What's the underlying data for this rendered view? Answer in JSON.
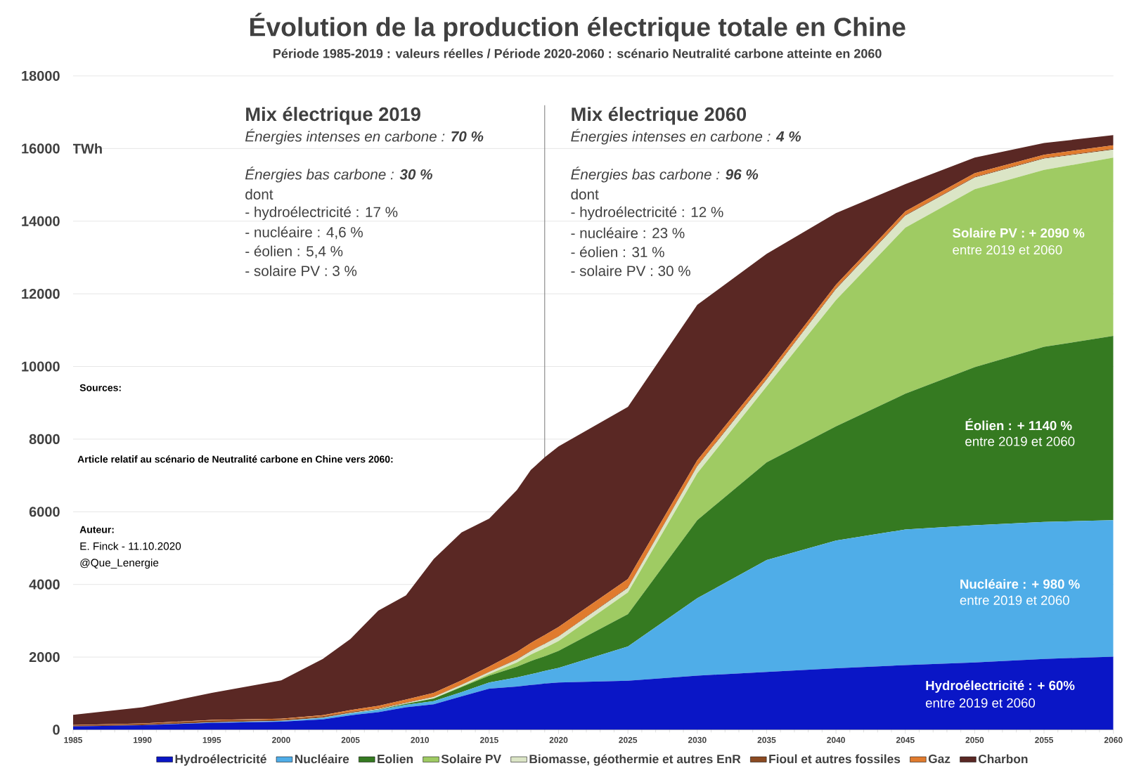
{
  "chart_data": {
    "type": "area",
    "stacked": true,
    "title": "Évolution de la production électrique totale en Chine",
    "subtitle": "Période 1985-2019 : valeurs réelles / Période 2020-2060 : scénario Neutralité carbone atteinte en 2060",
    "ylabel": "TWh",
    "x": [
      1985,
      1990,
      1995,
      2000,
      2003,
      2005,
      2007,
      2009,
      2011,
      2013,
      2015,
      2017,
      2018,
      2019,
      2020,
      2025,
      2030,
      2035,
      2040,
      2045,
      2050,
      2055,
      2060
    ],
    "series": [
      {
        "name": "Hydroélectricité",
        "color": "#0a16c6",
        "values": [
          90,
          125,
          190,
          222,
          284,
          397,
          485,
          616,
          698,
          920,
          1130,
          1190,
          1230,
          1270,
          1300,
          1350,
          1490,
          1590,
          1690,
          1780,
          1850,
          1950,
          2010
        ]
      },
      {
        "name": "Nucléaire",
        "color": "#4fade8",
        "values": [
          0,
          0,
          13,
          17,
          43,
          53,
          62,
          70,
          87,
          112,
          171,
          248,
          295,
          348,
          400,
          940,
          2130,
          3080,
          3520,
          3730,
          3780,
          3770,
          3760
        ]
      },
      {
        "name": "Eolien",
        "color": "#357a21",
        "values": [
          0,
          0,
          0,
          0,
          0,
          2,
          6,
          27,
          74,
          140,
          186,
          295,
          366,
          405,
          470,
          890,
          2150,
          2690,
          3140,
          3740,
          4350,
          4820,
          5070
        ]
      },
      {
        "name": "Solaire PV",
        "color": "#9fcb63",
        "values": [
          0,
          0,
          0,
          0,
          0,
          0,
          0,
          0,
          3,
          15,
          45,
          118,
          177,
          224,
          270,
          600,
          1290,
          2090,
          3480,
          4570,
          4900,
          4870,
          4910
        ]
      },
      {
        "name": "Biomasse, géothermie et autres EnR",
        "color": "#dbe5c6",
        "values": [
          0,
          0,
          0,
          5,
          8,
          10,
          15,
          20,
          35,
          45,
          55,
          80,
          95,
          110,
          120,
          120,
          190,
          190,
          300,
          330,
          320,
          310,
          220
        ]
      },
      {
        "name": "Fioul et autres fossiles",
        "color": "#8b4a22",
        "values": [
          30,
          40,
          50,
          40,
          35,
          30,
          20,
          15,
          10,
          10,
          10,
          10,
          10,
          10,
          10,
          20,
          20,
          20,
          20,
          20,
          20,
          20,
          20
        ]
      },
      {
        "name": "Gaz",
        "color": "#e07b2e",
        "values": [
          10,
          10,
          15,
          20,
          30,
          50,
          70,
          85,
          110,
          115,
          145,
          200,
          215,
          240,
          260,
          230,
          150,
          110,
          100,
          100,
          100,
          90,
          100
        ]
      },
      {
        "name": "Charbon",
        "color": "#5a2824",
        "values": [
          280,
          445,
          745,
          1055,
          1550,
          1958,
          2622,
          2867,
          3683,
          4073,
          4068,
          4459,
          4762,
          4893,
          4970,
          4740,
          4280,
          3330,
          1970,
          750,
          430,
          320,
          280
        ]
      }
    ],
    "xlim": [
      1985,
      2060
    ],
    "ylim": [
      0,
      18000
    ],
    "xticks": [
      1985,
      1990,
      1995,
      2000,
      2005,
      2010,
      2015,
      2020,
      2025,
      2030,
      2035,
      2040,
      2045,
      2050,
      2055,
      2060
    ],
    "yticks": [
      0,
      2000,
      4000,
      6000,
      8000,
      10000,
      12000,
      14000,
      16000,
      18000
    ],
    "grid": "y",
    "legend": "bottom",
    "ref_lines": [
      {
        "axis": "x",
        "value": 2019,
        "color": "#808080"
      }
    ],
    "annotations": [
      "Mix électrique 2019",
      "Énergies intenses en carbone : **70 %**",
      "Énergies bas carbone : **30 %**",
      "dont",
      "- hydroélectricité : 17 %",
      "- nucléaire : 4,6 %",
      "- éolien : 5,4 %",
      "- solaire PV : 3 %",
      "Mix électrique 2060",
      "Énergies intenses en carbone : **4 %**",
      "Énergies bas carbone : **96 %**",
      "dont",
      "- hydroélectricité : 12 %",
      "- nucléaire : 23 %",
      "- éolien : 31 %",
      "- solaire PV : 30 %",
      "Sources:",
      "Article relatif au scénario de Neutralité carbone en Chine vers 2060:",
      "Auteur:",
      "E. Finck - 11.10.2020",
      "@Que_Lenergie",
      "Solaire PV : + 2090 %",
      "entre 2019 et 2060",
      "Éolien : + 1140 %",
      "entre 2019 et 2060",
      "Nucléaire : + 980 %",
      "entre 2019 et 2060",
      "Hydroélectricité : + 60%",
      "entre 2019 et 2060"
    ]
  }
}
